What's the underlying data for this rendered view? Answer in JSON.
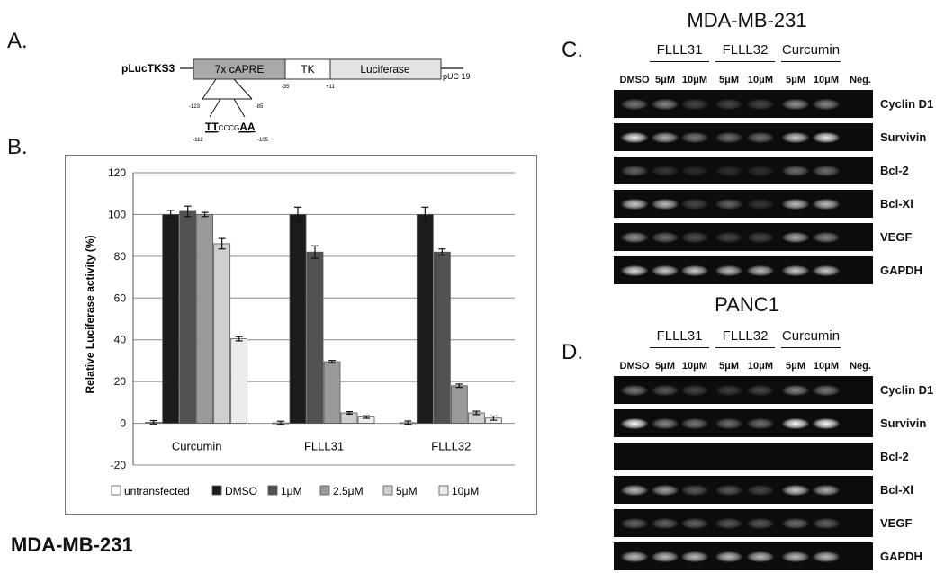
{
  "panels": {
    "a": "A.",
    "b": "B.",
    "c": "C.",
    "d": "D."
  },
  "construct": {
    "name": "pLucTKS3",
    "segments": [
      "7x cAPRE",
      "TK",
      "Luciferase",
      "pUC 19"
    ],
    "positions": [
      "-35",
      "+11",
      "-123",
      "-85",
      "-112",
      "-105"
    ],
    "sequence": {
      "underlined_start": "TT",
      "middle": "CCCG",
      "underlined_end": "AA"
    }
  },
  "bottom_label": "MDA-MB-231",
  "chart_data": {
    "type": "bar",
    "title": "",
    "xlabel": "",
    "ylabel": "Relative Luciferase activity (%)",
    "ylim": [
      -20,
      120
    ],
    "yticks": [
      -20,
      0,
      20,
      40,
      60,
      80,
      100,
      120
    ],
    "grid": true,
    "legend_position": "bottom",
    "categories": [
      "Curcumin",
      "FLLL31",
      "FLLL32"
    ],
    "series": [
      {
        "name": "untransfected",
        "color": "#ffffff",
        "values": [
          0.5,
          0.2,
          0.3
        ],
        "errors": [
          0.8,
          0.8,
          0.8
        ]
      },
      {
        "name": "DMSO",
        "color": "#1c1c1c",
        "values": [
          100,
          100,
          100
        ],
        "errors": [
          2.0,
          3.5,
          3.5
        ]
      },
      {
        "name": "1μM",
        "color": "#525252",
        "values": [
          101.5,
          82,
          82
        ],
        "errors": [
          2.5,
          3.0,
          1.5
        ]
      },
      {
        "name": "2.5μM",
        "color": "#9a9a9a",
        "values": [
          100,
          29.5,
          18
        ],
        "errors": [
          1.0,
          0.6,
          0.8
        ]
      },
      {
        "name": "5μM",
        "color": "#cfcfcf",
        "values": [
          86,
          5,
          5
        ],
        "errors": [
          2.5,
          0.6,
          0.8
        ]
      },
      {
        "name": "10μM",
        "color": "#ececec",
        "values": [
          40.5,
          3,
          2.5
        ],
        "errors": [
          1.0,
          0.6,
          1.0
        ]
      }
    ]
  },
  "gels": [
    {
      "title": "MDA-MB-231",
      "groups": [
        "FLLL31",
        "FLLL32",
        "Curcumin"
      ],
      "lanes": [
        "DMSO",
        "5μM",
        "10μM",
        "5μM",
        "10μM",
        "5μM",
        "10μM",
        "Neg."
      ],
      "genes": [
        {
          "name": "Cyclin D1",
          "intensity": [
            0.55,
            0.6,
            0.3,
            0.3,
            0.3,
            0.65,
            0.6,
            0
          ]
        },
        {
          "name": "Survivin",
          "intensity": [
            0.95,
            0.75,
            0.55,
            0.5,
            0.5,
            0.85,
            0.95,
            0
          ]
        },
        {
          "name": "Bcl-2",
          "intensity": [
            0.45,
            0.2,
            0.12,
            0.15,
            0.15,
            0.5,
            0.5,
            0
          ]
        },
        {
          "name": "Bcl-Xl",
          "intensity": [
            0.85,
            0.8,
            0.3,
            0.45,
            0.2,
            0.8,
            0.8,
            0
          ]
        },
        {
          "name": "VEGF",
          "intensity": [
            0.65,
            0.5,
            0.35,
            0.3,
            0.3,
            0.75,
            0.6,
            0
          ]
        },
        {
          "name": "GAPDH",
          "intensity": [
            0.9,
            0.85,
            0.85,
            0.8,
            0.8,
            0.85,
            0.85,
            0
          ]
        }
      ]
    },
    {
      "title": "PANC1",
      "groups": [
        "FLLL31",
        "FLLL32",
        "Curcumin"
      ],
      "lanes": [
        "DMSO",
        "5μM",
        "10μM",
        "5μM",
        "10μM",
        "5μM",
        "10μM",
        "Neg."
      ],
      "genes": [
        {
          "name": "Cyclin D1",
          "intensity": [
            0.55,
            0.4,
            0.3,
            0.25,
            0.3,
            0.6,
            0.55,
            0
          ]
        },
        {
          "name": "Survivin",
          "intensity": [
            1.0,
            0.6,
            0.55,
            0.5,
            0.5,
            1.0,
            1.0,
            0
          ]
        },
        {
          "name": "Bcl-2",
          "intensity": [
            0,
            0,
            0,
            0,
            0,
            0,
            0,
            0
          ]
        },
        {
          "name": "Bcl-Xl",
          "intensity": [
            0.8,
            0.7,
            0.4,
            0.4,
            0.3,
            0.85,
            0.75,
            0
          ]
        },
        {
          "name": "VEGF",
          "intensity": [
            0.45,
            0.45,
            0.45,
            0.4,
            0.4,
            0.5,
            0.45,
            0
          ]
        },
        {
          "name": "GAPDH",
          "intensity": [
            0.8,
            0.8,
            0.8,
            0.8,
            0.8,
            0.8,
            0.8,
            0
          ]
        }
      ]
    }
  ]
}
